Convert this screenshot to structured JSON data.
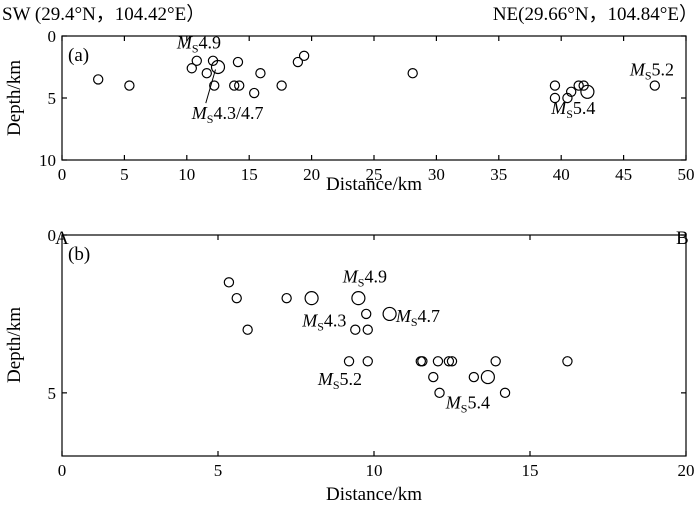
{
  "header": {
    "left": "SW (29.4°N，104.42°E）",
    "right": "NE(29.66°N，104.84°E）"
  },
  "profile_labels": {
    "start": "A",
    "end": "B"
  },
  "chart_data": [
    {
      "type": "scatter",
      "panel_label": "(a)",
      "xlabel": "Distance/km",
      "ylabel": "Depth/km",
      "xlim": [
        0,
        50
      ],
      "ylim": [
        10,
        0
      ],
      "y_inverted": true,
      "xticks": [
        0,
        5,
        10,
        15,
        20,
        25,
        30,
        35,
        40,
        45,
        50
      ],
      "yticks": [
        0,
        5,
        10
      ],
      "points": [
        {
          "x": 2.9,
          "y": 3.5
        },
        {
          "x": 5.4,
          "y": 4.0
        },
        {
          "x": 10.4,
          "y": 2.6
        },
        {
          "x": 10.8,
          "y": 2.0
        },
        {
          "x": 11.6,
          "y": 3.0
        },
        {
          "x": 12.1,
          "y": 2.0
        },
        {
          "x": 12.2,
          "y": 4.0
        },
        {
          "x": 12.5,
          "y": 2.5,
          "size": "large"
        },
        {
          "x": 13.8,
          "y": 4.0
        },
        {
          "x": 14.2,
          "y": 4.0
        },
        {
          "x": 14.1,
          "y": 2.1
        },
        {
          "x": 15.4,
          "y": 4.6
        },
        {
          "x": 15.9,
          "y": 3.0
        },
        {
          "x": 17.6,
          "y": 4.0
        },
        {
          "x": 18.9,
          "y": 2.1
        },
        {
          "x": 19.4,
          "y": 1.6
        },
        {
          "x": 28.1,
          "y": 3.0
        },
        {
          "x": 39.5,
          "y": 4.0
        },
        {
          "x": 39.5,
          "y": 5.0
        },
        {
          "x": 40.5,
          "y": 5.0
        },
        {
          "x": 40.8,
          "y": 4.5
        },
        {
          "x": 41.4,
          "y": 4.0
        },
        {
          "x": 41.8,
          "y": 4.0
        },
        {
          "x": 42.1,
          "y": 4.5,
          "size": "large"
        },
        {
          "x": 47.5,
          "y": 4.0
        }
      ],
      "annotations": [
        {
          "prefix": "M",
          "sub": "S",
          "value": "4.9",
          "x": 9.2,
          "y": 1.0
        },
        {
          "prefix": "M",
          "sub": "S",
          "value": "4.3/4.7",
          "x": 10.4,
          "y": 6.7,
          "leader_to": {
            "x": 12.3,
            "y": 2.7
          }
        },
        {
          "prefix": "M",
          "sub": "S",
          "value": "5.2",
          "x": 45.5,
          "y": 3.2
        },
        {
          "prefix": "M",
          "sub": "S",
          "value": "5.4",
          "x": 39.2,
          "y": 6.3
        }
      ]
    },
    {
      "type": "scatter",
      "panel_label": "(b)",
      "xlabel": "Distance/km",
      "ylabel": "Depth/km",
      "xlim": [
        0,
        20
      ],
      "ylim": [
        7,
        0
      ],
      "y_inverted": true,
      "xticks": [
        0,
        5,
        10,
        15,
        20
      ],
      "yticks": [
        0,
        5
      ],
      "points": [
        {
          "x": 5.35,
          "y": 1.5
        },
        {
          "x": 5.6,
          "y": 2.0
        },
        {
          "x": 5.95,
          "y": 3.0
        },
        {
          "x": 7.2,
          "y": 2.0
        },
        {
          "x": 8.0,
          "y": 2.0,
          "size": "large"
        },
        {
          "x": 9.2,
          "y": 4.0
        },
        {
          "x": 9.4,
          "y": 3.0
        },
        {
          "x": 9.5,
          "y": 2.0,
          "size": "large"
        },
        {
          "x": 9.75,
          "y": 2.5
        },
        {
          "x": 9.8,
          "y": 3.0
        },
        {
          "x": 9.8,
          "y": 4.0
        },
        {
          "x": 10.5,
          "y": 2.5,
          "size": "large"
        },
        {
          "x": 11.5,
          "y": 4.0
        },
        {
          "x": 11.55,
          "y": 4.0
        },
        {
          "x": 11.9,
          "y": 4.5
        },
        {
          "x": 12.05,
          "y": 4.0
        },
        {
          "x": 12.1,
          "y": 5.0
        },
        {
          "x": 12.4,
          "y": 4.0
        },
        {
          "x": 12.5,
          "y": 4.0
        },
        {
          "x": 13.2,
          "y": 4.5
        },
        {
          "x": 13.65,
          "y": 4.5,
          "size": "large"
        },
        {
          "x": 13.9,
          "y": 4.0
        },
        {
          "x": 14.2,
          "y": 5.0
        },
        {
          "x": 16.2,
          "y": 4.0
        }
      ],
      "annotations": [
        {
          "prefix": "M",
          "sub": "S",
          "value": "4.9",
          "x": 9.0,
          "y": 1.5
        },
        {
          "prefix": "M",
          "sub": "S",
          "value": "4.3",
          "x": 7.7,
          "y": 2.9
        },
        {
          "prefix": "M",
          "sub": "S",
          "value": "4.7",
          "x": 10.7,
          "y": 2.75
        },
        {
          "prefix": "M",
          "sub": "S",
          "value": "5.2",
          "x": 8.2,
          "y": 4.75
        },
        {
          "prefix": "M",
          "sub": "S",
          "value": "5.4",
          "x": 12.3,
          "y": 5.5
        }
      ]
    }
  ]
}
